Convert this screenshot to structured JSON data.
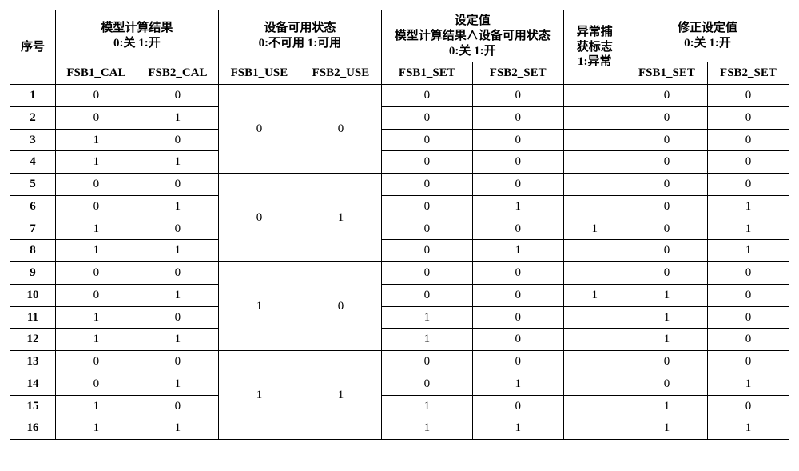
{
  "headers": {
    "seq": "序号",
    "group_cal": "模型计算结果\n0:关 1:开",
    "group_use": "设备可用状态\n0:不可用 1:可用",
    "group_set": "设定值\n模型计算结果∧设备可用状态\n0:关 1:开",
    "flag": "异常捕\n获标志\n1:异常",
    "group_fix": "修正设定值\n0:关 1:开",
    "sub": {
      "cal1": "FSB1_CAL",
      "cal2": "FSB2_CAL",
      "use1": "FSB1_USE",
      "use2": "FSB2_USE",
      "set1": "FSB1_SET",
      "set2": "FSB2_SET",
      "fix1": "FSB1_SET",
      "fix2": "FSB2_SET"
    }
  },
  "use_blocks": [
    {
      "use1": "0",
      "use2": "0"
    },
    {
      "use1": "0",
      "use2": "1"
    },
    {
      "use1": "1",
      "use2": "0"
    },
    {
      "use1": "1",
      "use2": "1"
    }
  ],
  "rows": [
    {
      "seq": "1",
      "cal1": "0",
      "cal2": "0",
      "set1": "0",
      "set2": "0",
      "flag": "",
      "fix1": "0",
      "fix2": "0"
    },
    {
      "seq": "2",
      "cal1": "0",
      "cal2": "1",
      "set1": "0",
      "set2": "0",
      "flag": "",
      "fix1": "0",
      "fix2": "0"
    },
    {
      "seq": "3",
      "cal1": "1",
      "cal2": "0",
      "set1": "0",
      "set2": "0",
      "flag": "",
      "fix1": "0",
      "fix2": "0"
    },
    {
      "seq": "4",
      "cal1": "1",
      "cal2": "1",
      "set1": "0",
      "set2": "0",
      "flag": "",
      "fix1": "0",
      "fix2": "0"
    },
    {
      "seq": "5",
      "cal1": "0",
      "cal2": "0",
      "set1": "0",
      "set2": "0",
      "flag": "",
      "fix1": "0",
      "fix2": "0"
    },
    {
      "seq": "6",
      "cal1": "0",
      "cal2": "1",
      "set1": "0",
      "set2": "1",
      "flag": "",
      "fix1": "0",
      "fix2": "1"
    },
    {
      "seq": "7",
      "cal1": "1",
      "cal2": "0",
      "set1": "0",
      "set2": "0",
      "flag": "1",
      "fix1": "0",
      "fix2": "1"
    },
    {
      "seq": "8",
      "cal1": "1",
      "cal2": "1",
      "set1": "0",
      "set2": "1",
      "flag": "",
      "fix1": "0",
      "fix2": "1"
    },
    {
      "seq": "9",
      "cal1": "0",
      "cal2": "0",
      "set1": "0",
      "set2": "0",
      "flag": "",
      "fix1": "0",
      "fix2": "0"
    },
    {
      "seq": "10",
      "cal1": "0",
      "cal2": "1",
      "set1": "0",
      "set2": "0",
      "flag": "1",
      "fix1": "1",
      "fix2": "0"
    },
    {
      "seq": "11",
      "cal1": "1",
      "cal2": "0",
      "set1": "1",
      "set2": "0",
      "flag": "",
      "fix1": "1",
      "fix2": "0"
    },
    {
      "seq": "12",
      "cal1": "1",
      "cal2": "1",
      "set1": "1",
      "set2": "0",
      "flag": "",
      "fix1": "1",
      "fix2": "0"
    },
    {
      "seq": "13",
      "cal1": "0",
      "cal2": "0",
      "set1": "0",
      "set2": "0",
      "flag": "",
      "fix1": "0",
      "fix2": "0"
    },
    {
      "seq": "14",
      "cal1": "0",
      "cal2": "1",
      "set1": "0",
      "set2": "1",
      "flag": "",
      "fix1": "0",
      "fix2": "1"
    },
    {
      "seq": "15",
      "cal1": "1",
      "cal2": "0",
      "set1": "1",
      "set2": "0",
      "flag": "",
      "fix1": "1",
      "fix2": "0"
    },
    {
      "seq": "16",
      "cal1": "1",
      "cal2": "1",
      "set1": "1",
      "set2": "1",
      "flag": "",
      "fix1": "1",
      "fix2": "1"
    }
  ]
}
